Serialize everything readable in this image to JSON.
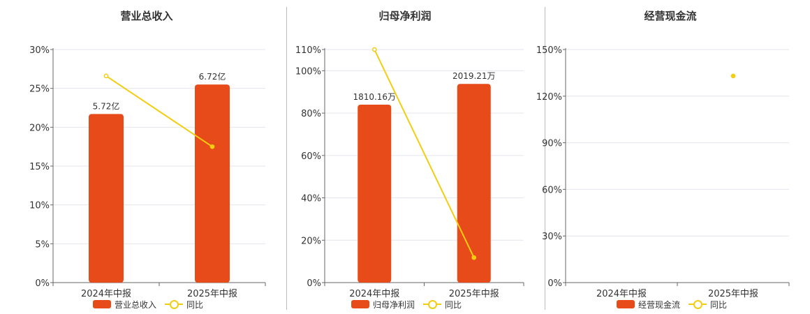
{
  "colors": {
    "bar": "#E84B1A",
    "line": "#F2CD11",
    "axis": "#666666",
    "grid": "#E3E6EE",
    "divider": "#BBBBBB"
  },
  "chart_data": [
    {
      "type": "bar",
      "title": "营业总收入",
      "categories": [
        "2024年中报",
        "2025年中报"
      ],
      "ylim": [
        0,
        30
      ],
      "yticks": [
        "0%",
        "5%",
        "10%",
        "15%",
        "20%",
        "25%",
        "30%"
      ],
      "ytick_values": [
        0,
        5,
        10,
        15,
        20,
        25,
        30
      ],
      "series": [
        {
          "name": "营业总收入",
          "kind": "bar",
          "values": [
            21.7,
            25.5
          ],
          "labels": [
            "5.72亿",
            "6.72亿"
          ]
        },
        {
          "name": "同比",
          "kind": "line",
          "values": [
            26.6,
            17.5
          ]
        }
      ],
      "legend": "bottom-center",
      "grid": true
    },
    {
      "type": "bar",
      "title": "归母净利润",
      "categories": [
        "2024年中报",
        "2025年中报"
      ],
      "ylim": [
        0,
        110
      ],
      "yticks": [
        "0%",
        "20%",
        "40%",
        "60%",
        "80%",
        "100%",
        "110%"
      ],
      "ytick_values": [
        0,
        20,
        40,
        60,
        80,
        100,
        110
      ],
      "series": [
        {
          "name": "归母净利润",
          "kind": "bar",
          "values": [
            84.0,
            93.8
          ],
          "labels": [
            "1810.16万",
            "2019.21万"
          ]
        },
        {
          "name": "同比",
          "kind": "line",
          "values": [
            110.0,
            11.8
          ]
        }
      ],
      "legend": "bottom-center",
      "grid": true
    },
    {
      "type": "bar",
      "title": "经营现金流",
      "categories": [
        "2024年中报",
        "2025年中报"
      ],
      "ylim": [
        0,
        150
      ],
      "yticks": [
        "0%",
        "30%",
        "60%",
        "90%",
        "120%",
        "150%"
      ],
      "ytick_values": [
        0,
        30,
        60,
        90,
        120,
        150
      ],
      "series": [
        {
          "name": "经营现金流",
          "kind": "bar",
          "values": [
            null,
            null
          ],
          "labels": [
            "",
            ""
          ]
        },
        {
          "name": "同比",
          "kind": "line",
          "values": [
            null,
            133.0
          ]
        }
      ],
      "legend": "bottom-center",
      "grid": true
    }
  ],
  "legend_labels": [
    {
      "bar": "营业总收入",
      "line": "同比"
    },
    {
      "bar": "归母净利润",
      "line": "同比"
    },
    {
      "bar": "经营现金流",
      "line": "同比"
    }
  ]
}
